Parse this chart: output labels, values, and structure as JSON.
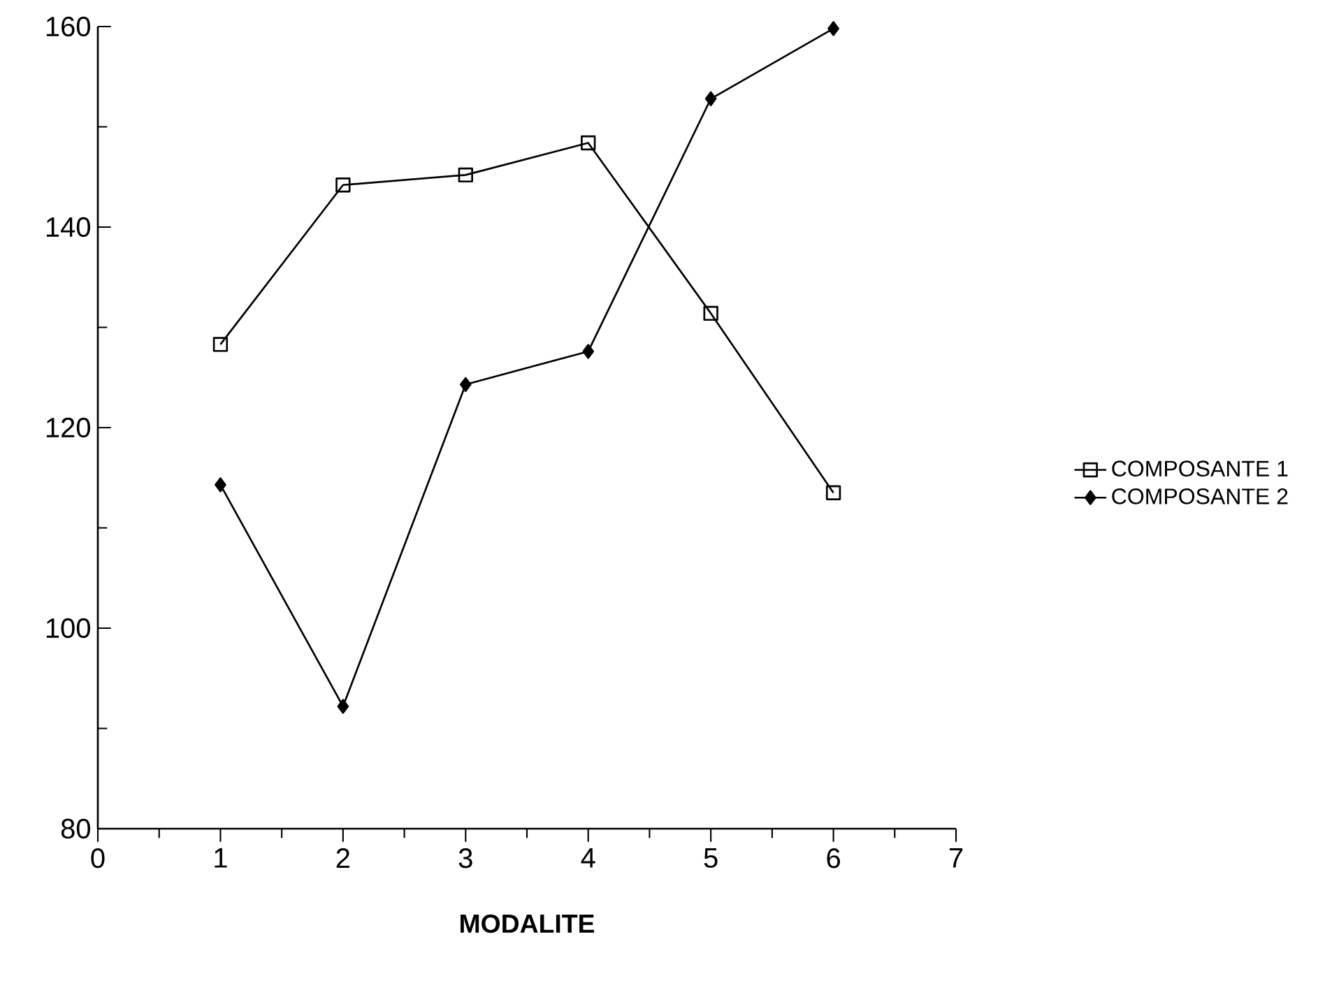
{
  "chart_data": {
    "type": "line",
    "xlabel": "MODALITE",
    "x": [
      1,
      2,
      3,
      4,
      5,
      6
    ],
    "series": [
      {
        "name": "COMPOSANTE 1",
        "color": "#000000",
        "marker": "square",
        "values": [
          128.3,
          144.2,
          145.2,
          148.4,
          131.4,
          113.5
        ]
      },
      {
        "name": "COMPOSANTE 2",
        "color": "#000000",
        "marker": "diamond",
        "values": [
          114.3,
          92.2,
          124.3,
          127.6,
          152.8,
          159.8
        ]
      }
    ],
    "xlim": [
      0,
      7
    ],
    "xticks": [
      0,
      1,
      2,
      3,
      4,
      5,
      6,
      7
    ],
    "ylim": [
      80,
      160
    ],
    "yticks": [
      80,
      100,
      120,
      140,
      160
    ],
    "legend": "right",
    "grid": false,
    "line_style": "solid"
  }
}
